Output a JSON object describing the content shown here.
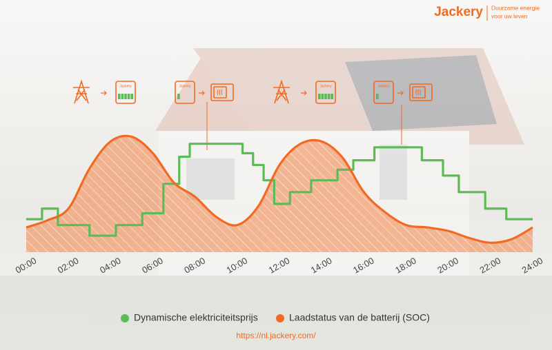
{
  "header": {
    "brand": "Jackery",
    "tagline": [
      "Duurzame energie",
      "voor uw leven"
    ]
  },
  "icons": {
    "device_label": "Jackery"
  },
  "chart_data": {
    "type": "line",
    "xlim": [
      0,
      24
    ],
    "ylim": [
      0,
      100
    ],
    "xticks": [
      {
        "value": 0,
        "label": "00:00"
      },
      {
        "value": 2,
        "label": "02:00"
      },
      {
        "value": 4,
        "label": "04:00"
      },
      {
        "value": 6,
        "label": "06:00"
      },
      {
        "value": 8,
        "label": "08:00"
      },
      {
        "value": 10,
        "label": "10:00"
      },
      {
        "value": 12,
        "label": "12:00"
      },
      {
        "value": 14,
        "label": "14:00"
      },
      {
        "value": 16,
        "label": "16:00"
      },
      {
        "value": 18,
        "label": "18:00"
      },
      {
        "value": 20,
        "label": "20:00"
      },
      {
        "value": 22,
        "label": "22:00"
      },
      {
        "value": 24,
        "label": "24:00"
      }
    ],
    "series": [
      {
        "name": "Dynamische elektriciteitsprijs",
        "color": "#5dbb57",
        "style": "step",
        "x": [
          0,
          0.75,
          1.5,
          3,
          4.25,
          5.5,
          6.5,
          7.25,
          7.75,
          10.25,
          10.75,
          11.25,
          11.75,
          12.5,
          13.5,
          14.75,
          15.5,
          16.5,
          18.75,
          19.75,
          20.5,
          21.75,
          22.75,
          24
        ],
        "values": [
          28,
          37,
          23,
          14,
          23,
          33,
          58,
          81,
          92,
          84,
          74,
          61,
          41,
          51,
          61,
          70,
          78,
          89,
          78,
          65,
          51,
          37,
          28,
          28
        ]
      },
      {
        "name": "Laadstatus van de batterij (SOC)",
        "color": "#f26a21",
        "style": "area",
        "x": [
          0,
          1,
          2,
          3,
          4,
          5,
          6,
          7,
          8,
          9,
          10,
          11,
          12,
          13,
          14,
          15,
          16,
          17,
          18,
          19,
          20,
          21,
          22,
          23,
          24
        ],
        "values": [
          21,
          27,
          37,
          71,
          94,
          98,
          84,
          59,
          47,
          30,
          23,
          39,
          74,
          92,
          94,
          80,
          51,
          34,
          23,
          21,
          18,
          12,
          8,
          11,
          21
        ]
      }
    ]
  },
  "footer": {
    "url": "https://nl.jackery.com/"
  }
}
